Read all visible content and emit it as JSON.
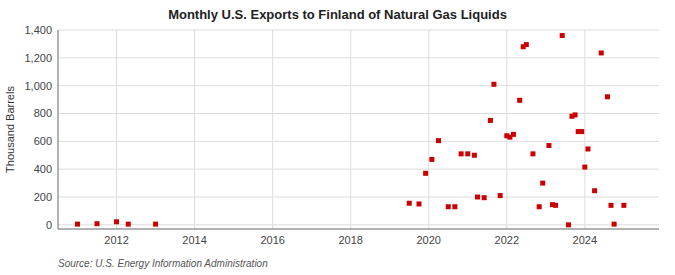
{
  "chart_data": {
    "type": "scatter",
    "title": "Monthly U.S. Exports to Finland of Natural Gas Liquids",
    "ylabel": "Thousand Barrels",
    "annotations": [
      "Source: U.S. Energy Information Administration"
    ],
    "color": "#cc0000",
    "marker": "square",
    "grid": true,
    "xlim": [
      2010.5,
      2025.9
    ],
    "ylim": [
      -30,
      1400
    ],
    "xticks": [
      2012,
      2014,
      2016,
      2018,
      2020,
      2022,
      2024
    ],
    "yticks": [
      0,
      200,
      400,
      600,
      800,
      {
        "value": 1000,
        "label": "1,000"
      },
      {
        "value": 1200,
        "label": "1,200"
      },
      {
        "value": 1400,
        "label": "1,400"
      }
    ],
    "x": [
      2011.0,
      2011.5,
      2012.0,
      2012.3,
      2013.0,
      2019.5,
      2019.75,
      2019.92,
      2020.08,
      2020.25,
      2020.5,
      2020.67,
      2020.83,
      2021.0,
      2021.17,
      2021.25,
      2021.42,
      2021.58,
      2021.67,
      2021.83,
      2022.0,
      2022.08,
      2022.17,
      2022.33,
      2022.42,
      2022.5,
      2022.67,
      2022.83,
      2022.92,
      2023.08,
      2023.17,
      2023.25,
      2023.42,
      2023.58,
      2023.67,
      2023.75,
      2023.83,
      2023.92,
      2024.0,
      2024.08,
      2024.25,
      2024.42,
      2024.58,
      2024.67,
      2024.75,
      2025.0
    ],
    "values": [
      5,
      8,
      22,
      5,
      5,
      155,
      150,
      370,
      470,
      605,
      130,
      130,
      510,
      510,
      500,
      200,
      195,
      750,
      1010,
      210,
      640,
      630,
      650,
      895,
      1280,
      1295,
      510,
      130,
      300,
      570,
      145,
      140,
      1360,
      0,
      780,
      790,
      670,
      670,
      415,
      545,
      245,
      1235,
      920,
      140,
      5,
      140
    ]
  }
}
